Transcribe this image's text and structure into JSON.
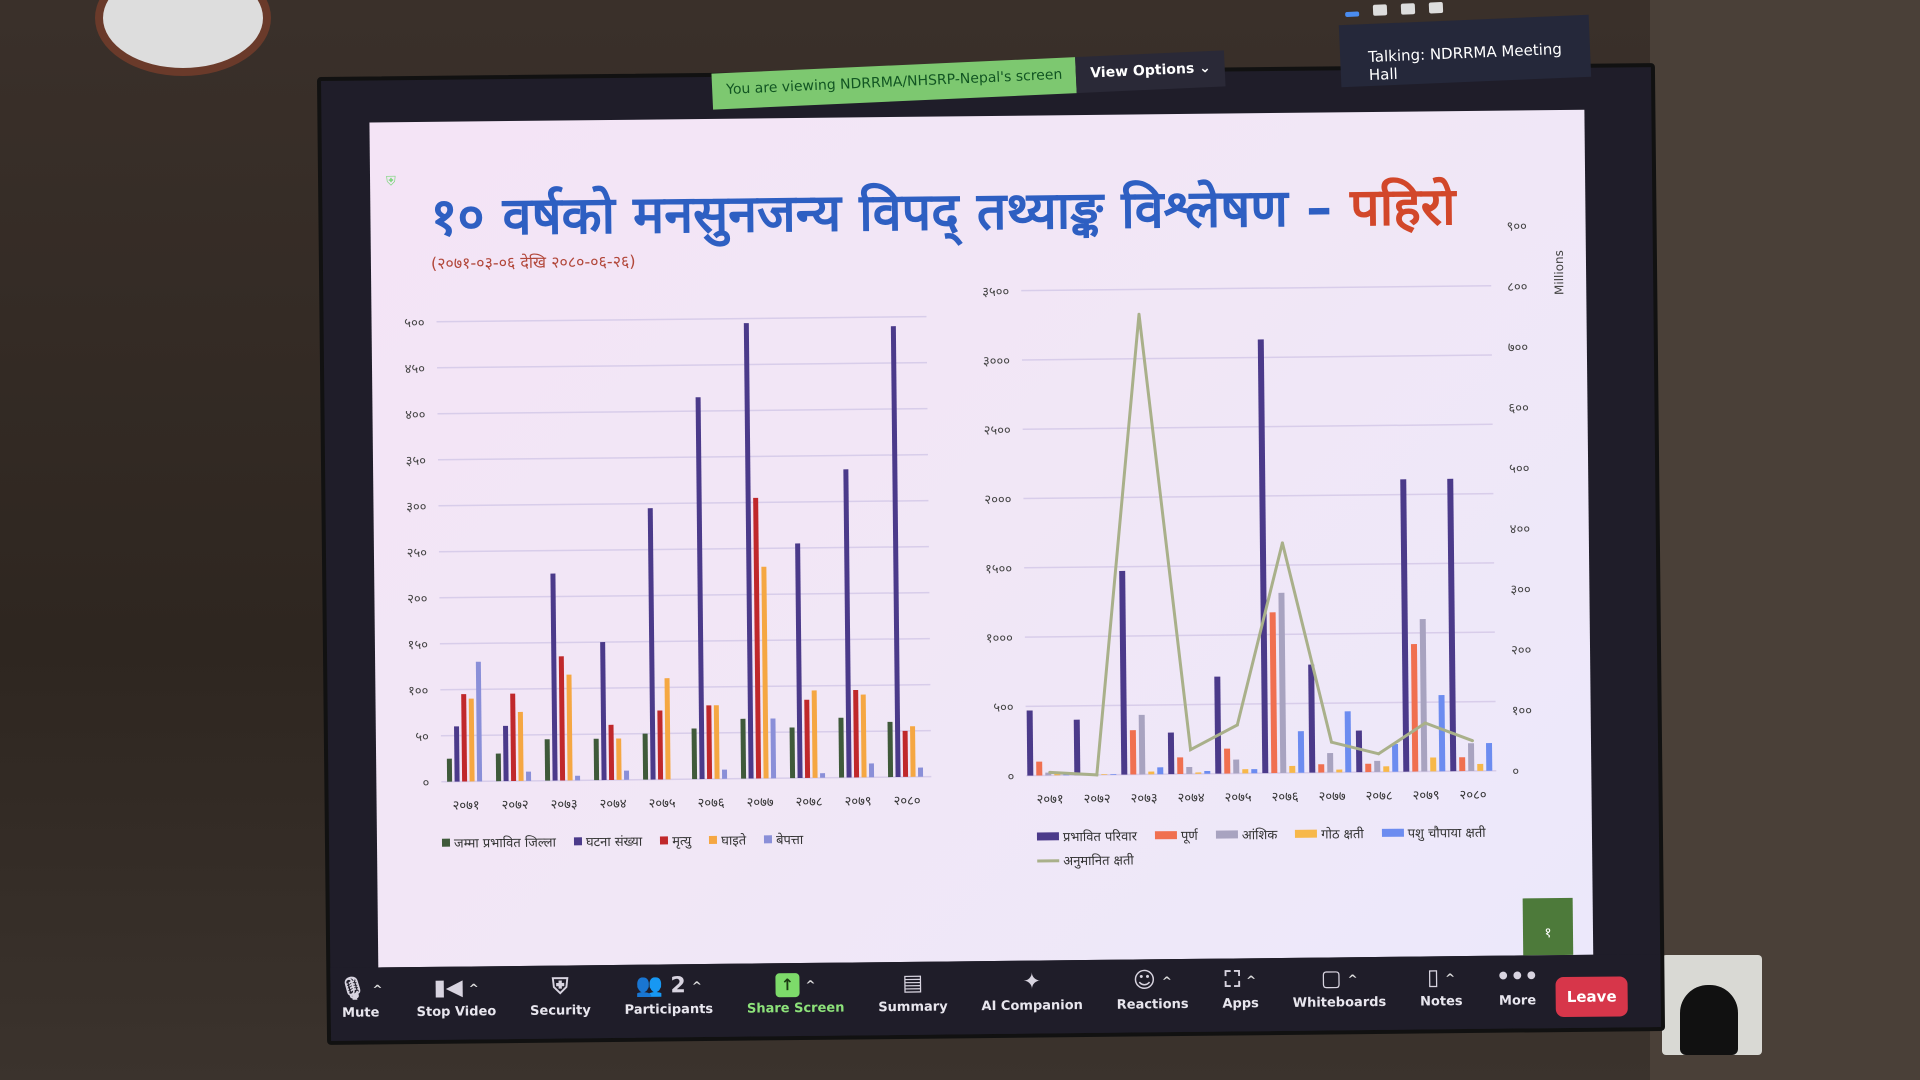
{
  "zoom": {
    "viewing_banner": "You are viewing NDRRMA/NHSRP-Nepal's screen",
    "view_options": "View Options",
    "talking": "Talking: NDRRMA Meeting Hall",
    "toolbar": [
      {
        "label": "Mute",
        "icon": "microphone-icon",
        "glyph": "🎙",
        "caret": true
      },
      {
        "label": "Stop Video",
        "icon": "video-camera-icon",
        "glyph": "▮◀",
        "caret": true
      },
      {
        "label": "Security",
        "icon": "shield-icon",
        "glyph": "⛨",
        "caret": false
      },
      {
        "label": "Participants",
        "icon": "participants-icon",
        "glyph": "👥 2",
        "caret": true
      },
      {
        "label": "Share Screen",
        "icon": "share-screen-icon",
        "glyph": "↑",
        "caret": true
      },
      {
        "label": "Summary",
        "icon": "summary-icon",
        "glyph": "▤",
        "caret": false
      },
      {
        "label": "AI Companion",
        "icon": "sparkle-icon",
        "glyph": "✦",
        "caret": false
      },
      {
        "label": "Reactions",
        "icon": "smiley-icon",
        "glyph": "☺",
        "caret": true
      },
      {
        "label": "Apps",
        "icon": "apps-icon",
        "glyph": "⛶",
        "caret": true
      },
      {
        "label": "Whiteboards",
        "icon": "whiteboard-icon",
        "glyph": "▢",
        "caret": true
      },
      {
        "label": "Notes",
        "icon": "notes-icon",
        "glyph": "▯",
        "caret": true
      },
      {
        "label": "More",
        "icon": "more-icon",
        "glyph": "•••",
        "caret": false
      }
    ],
    "leave": "Leave",
    "colors": {
      "share_green": "#7ddb6a",
      "leave_red": "#d7364a",
      "toolbar_bg": "#1f1d29"
    }
  },
  "slide": {
    "title_main": "१० वर्षको मनसुनजन्य विपद् तथ्याङ्क विश्लेषण – ",
    "title_accent": "पहिरो",
    "subtitle": "(२०७१-०३-०६ देखि २०८०-०६-२६)",
    "page_number": "१"
  },
  "chart_data": [
    {
      "type": "bar",
      "categories": [
        "२०७१",
        "२०७२",
        "२०७३",
        "२०७४",
        "२०७५",
        "२०७६",
        "२०७७",
        "२०७८",
        "२०७९",
        "२०८०"
      ],
      "ylim": [
        0,
        500
      ],
      "yticks": [
        "०",
        "५०",
        "१००",
        "१५०",
        "२००",
        "२५०",
        "३००",
        "३५०",
        "४००",
        "४५०",
        "५००"
      ],
      "grid": true,
      "legend": "bottom",
      "series": [
        {
          "name": "जम्मा प्रभावित जिल्ला",
          "color": "#3f5a3a",
          "values": [
            25,
            30,
            45,
            45,
            50,
            55,
            65,
            55,
            65,
            60
          ]
        },
        {
          "name": "घटना संख्या",
          "color": "#4b3a8a",
          "values": [
            60,
            60,
            225,
            150,
            295,
            415,
            495,
            255,
            335,
            490
          ]
        },
        {
          "name": "मृत्यु",
          "color": "#c0282b",
          "values": [
            95,
            95,
            135,
            60,
            75,
            80,
            305,
            85,
            95,
            50
          ]
        },
        {
          "name": "घाइते",
          "color": "#f5a742",
          "values": [
            90,
            75,
            115,
            45,
            110,
            80,
            230,
            95,
            90,
            55
          ]
        },
        {
          "name": "बेपत्ता",
          "color": "#8a8fd8",
          "values": [
            130,
            10,
            5,
            10,
            0,
            10,
            65,
            5,
            15,
            10
          ]
        }
      ]
    },
    {
      "type": "bar",
      "categories": [
        "२०७१",
        "२०७२",
        "२०७३",
        "२०७४",
        "२०७५",
        "२०७६",
        "२०७७",
        "२०७८",
        "२०७९",
        "२०८०"
      ],
      "ylim": [
        0,
        3500
      ],
      "yticks": [
        "०",
        "५००",
        "१०००",
        "१५००",
        "२०००",
        "२५००",
        "३०००",
        "३५००"
      ],
      "y2lim": [
        0,
        900
      ],
      "y2ticks": [
        "०",
        "१००",
        "२००",
        "३००",
        "४००",
        "५००",
        "६००",
        "७००",
        "८००",
        "९००"
      ],
      "y2label": "Millions",
      "grid": true,
      "legend": "bottom",
      "series": [
        {
          "name": "प्रभावित परिवार",
          "color": "#4b3a8a",
          "values": [
            470,
            400,
            1470,
            300,
            700,
            3130,
            780,
            300,
            2110,
            2110
          ]
        },
        {
          "name": "पूर्ण",
          "color": "#f07050",
          "values": [
            100,
            0,
            320,
            120,
            180,
            1160,
            60,
            60,
            920,
            100
          ]
        },
        {
          "name": "आंशिक",
          "color": "#a8a3c0",
          "values": [
            20,
            10,
            430,
            50,
            100,
            1300,
            140,
            80,
            1100,
            200
          ]
        },
        {
          "name": "गोठ क्षती",
          "color": "#f7b84a",
          "values": [
            10,
            5,
            20,
            10,
            30,
            50,
            20,
            40,
            100,
            50
          ]
        },
        {
          "name": "पशु चौपाया क्षती",
          "color": "#6c8cf0",
          "values": [
            10,
            5,
            50,
            20,
            30,
            300,
            440,
            200,
            550,
            200
          ]
        },
        {
          "name": "अनुमानित क्षती",
          "color": "#a9b08a",
          "type": "line",
          "axis": "right",
          "values": [
            5,
            0,
            760,
            40,
            80,
            380,
            50,
            30,
            80,
            50
          ]
        }
      ]
    }
  ]
}
